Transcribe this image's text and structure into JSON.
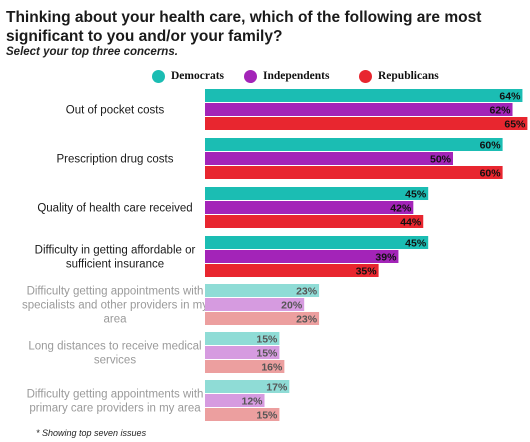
{
  "title": "Thinking about your health care, which of the following are most significant to you and/or your family?",
  "subtitle": "Select your top three concerns.",
  "footnote": "* Showing top seven issues",
  "chart_data": {
    "type": "bar",
    "orientation": "horizontal",
    "categories": [
      [
        "Out of pocket costs"
      ],
      [
        "Prescription drug costs"
      ],
      [
        "Quality of health care received"
      ],
      [
        "Difficulty in getting affordable or",
        "sufficient insurance"
      ],
      [
        "Difficulty getting appointments with",
        "specialists and other providers in my",
        "area"
      ],
      [
        "Long distances to receive medical",
        "services"
      ],
      [
        "Difficulty getting appointments with",
        "primary care providers in my area"
      ]
    ],
    "highlighted": [
      true,
      true,
      true,
      true,
      false,
      false,
      false
    ],
    "series": [
      {
        "name": "Democrats",
        "color": "#1bbdb3",
        "faded_color": "#8fdcd6",
        "values": [
          64,
          60,
          45,
          45,
          23,
          15,
          17
        ],
        "labels": [
          "64%",
          "60%",
          "45%",
          "45%",
          "23%",
          "15%",
          "17%"
        ]
      },
      {
        "name": "Independents",
        "color": "#a324b8",
        "faded_color": "#d69be0",
        "values": [
          62,
          50,
          42,
          39,
          20,
          15,
          12
        ],
        "labels": [
          "62%",
          "50%",
          "42%",
          "39%",
          "20%",
          "15%",
          "12%"
        ]
      },
      {
        "name": "Republicans",
        "color": "#e8262f",
        "faded_color": "#ec9f9f",
        "values": [
          65,
          60,
          44,
          35,
          23,
          16,
          15
        ],
        "labels": [
          "65%",
          "60%",
          "44%",
          "35%",
          "23%",
          "16%",
          "15%"
        ]
      }
    ],
    "xlim": [
      0,
      65
    ],
    "legend_position": "top",
    "grid": false,
    "label_colors": {
      "highlighted": "#1a1a1a",
      "faded": "#9a9a9a"
    },
    "value_label_colors": {
      "highlighted": "#111111",
      "faded": "#555555"
    }
  }
}
